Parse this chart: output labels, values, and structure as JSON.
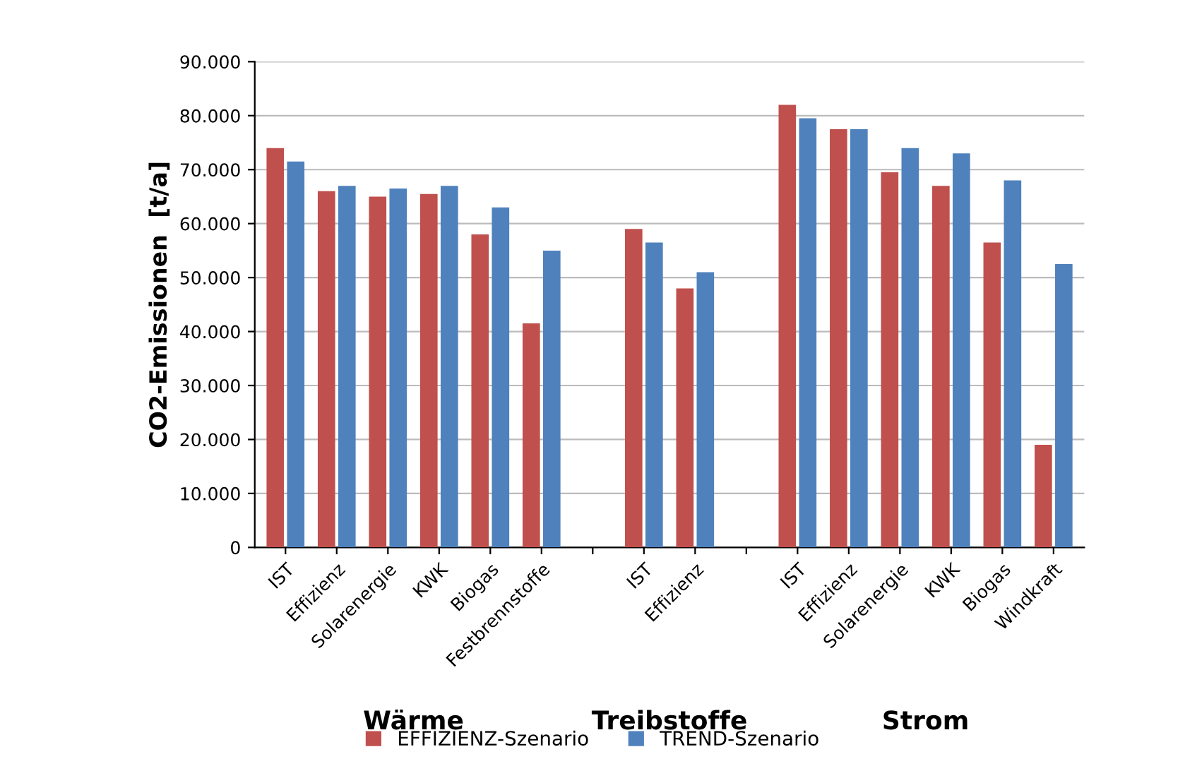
{
  "chart_data": {
    "type": "bar",
    "ylabel": "CO2-Emissionen  [t/a]",
    "categories": [
      "IST",
      "Effizienz",
      "Solarenergie",
      "KWK",
      "Biogas",
      "Festbrennstoffe",
      null,
      "IST",
      "Effizienz",
      null,
      "IST",
      "Effizienz",
      "Solarenergie",
      "KWK",
      "Biogas",
      "Windkraft"
    ],
    "series": [
      {
        "name": "EFFIZIENZ-Szenario",
        "color": "#c0504d",
        "values": [
          74000,
          66000,
          65000,
          65500,
          58000,
          41500,
          null,
          59000,
          48000,
          null,
          82000,
          77500,
          69500,
          67000,
          56500,
          19000
        ]
      },
      {
        "name": "TREND-Szenario",
        "color": "#4f81bd",
        "values": [
          71500,
          67000,
          66500,
          67000,
          63000,
          55000,
          null,
          56500,
          51000,
          null,
          79500,
          77500,
          74000,
          73000,
          68000,
          52500
        ]
      }
    ],
    "ylim": [
      0,
      90000
    ],
    "yticks": [
      {
        "value": 0,
        "label": "0"
      },
      {
        "value": 10000,
        "label": "10.000"
      },
      {
        "value": 20000,
        "label": "20.000"
      },
      {
        "value": 30000,
        "label": "30.000"
      },
      {
        "value": 40000,
        "label": "40.000"
      },
      {
        "value": 50000,
        "label": "50.000"
      },
      {
        "value": 60000,
        "label": "60.000"
      },
      {
        "value": 70000,
        "label": "70.000"
      },
      {
        "value": 80000,
        "label": "80.000"
      },
      {
        "value": 90000,
        "label": "90.000"
      }
    ],
    "grid": "y",
    "legend": "bottom",
    "annotations": [
      "Wärme",
      "Treibstoffe",
      "Strom"
    ]
  }
}
